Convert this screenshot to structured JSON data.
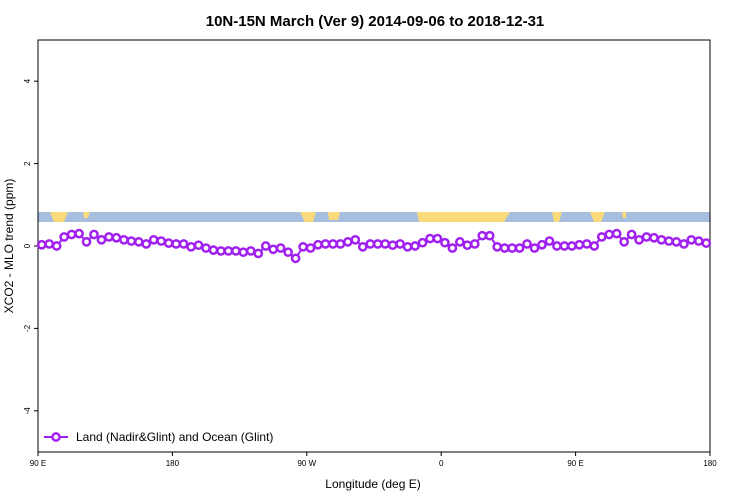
{
  "chart_data": {
    "type": "line",
    "title": "10N-15N March (Ver 9)   2014-09-06 to 2018-12-31",
    "x_label": "Longitude (deg E)",
    "y_label": "XCO2 - MLO trend (ppm)",
    "xlim": [
      90,
      540
    ],
    "ylim": [
      -5,
      5
    ],
    "xticks": [
      {
        "value": 90,
        "label": "90 E"
      },
      180,
      {
        "value": 270,
        "label": "90 W"
      },
      {
        "value": 360,
        "label": "0"
      },
      {
        "value": 450,
        "label": "90 E"
      },
      {
        "value": 540,
        "label": "180"
      }
    ],
    "yticks": [
      -4,
      -2,
      0,
      2,
      4
    ],
    "legend": "bottom-left",
    "x": [
      92.5,
      97.5,
      102.5,
      107.5,
      112.5,
      117.5,
      122.5,
      127.5,
      132.5,
      137.5,
      142.5,
      147.5,
      152.5,
      157.5,
      162.5,
      167.5,
      172.5,
      177.5,
      182.5,
      187.5,
      192.5,
      197.5,
      202.5,
      207.5,
      212.5,
      217.5,
      222.5,
      227.5,
      232.5,
      237.5,
      242.5,
      247.5,
      252.5,
      257.5,
      262.5,
      267.5,
      272.5,
      277.5,
      282.5,
      287.5,
      292.5,
      297.5,
      302.5,
      307.5,
      312.5,
      317.5,
      322.5,
      327.5,
      332.5,
      337.5,
      342.5,
      347.5,
      352.5,
      357.5,
      362.5,
      367.5,
      372.5,
      377.5,
      382.5,
      387.5,
      392.5,
      397.5,
      402.5,
      407.5,
      412.5,
      417.5,
      422.5,
      427.5,
      432.5,
      437.5,
      442.5,
      447.5,
      452.5,
      457.5,
      462.5,
      467.5,
      472.5,
      477.5,
      482.5,
      487.5,
      492.5,
      497.5,
      502.5,
      507.5,
      512.5,
      517.5,
      522.5,
      527.5,
      532.5,
      537.5
    ],
    "series": [
      {
        "name": "Land (Nadir&Glint) and Ocean (Glint)",
        "color": "#a020f0",
        "values": [
          0.03,
          0.05,
          0,
          0.22,
          0.28,
          0.3,
          0.1,
          0.28,
          0.15,
          0.22,
          0.2,
          0.15,
          0.12,
          0.1,
          0.05,
          0.15,
          0.12,
          0.07,
          0.05,
          0.05,
          -0.02,
          0.02,
          -0.05,
          -0.1,
          -0.12,
          -0.12,
          -0.12,
          -0.15,
          -0.12,
          -0.18,
          0,
          -0.08,
          -0.05,
          -0.15,
          -0.3,
          -0.02,
          -0.05,
          0.03,
          0.05,
          0.05,
          0.05,
          0.1,
          0.15,
          -0.02,
          0.05,
          0.05,
          0.05,
          0.02,
          0.05,
          -0.02,
          0,
          0.08,
          0.18,
          0.18,
          0.08,
          -0.05,
          0.1,
          0.02,
          0.05,
          0.25,
          0.25,
          -0.02,
          -0.05,
          -0.05,
          -0.05,
          0.05,
          -0.05,
          0.03,
          0.12,
          0,
          0,
          0,
          0.03,
          0.05,
          0,
          0.22,
          0.28,
          0.3,
          0.1,
          0.28,
          0.15,
          0.22,
          0.2,
          0.15,
          0.12,
          0.1,
          0.05,
          0.15,
          0.12,
          0.07
        ]
      }
    ]
  }
}
